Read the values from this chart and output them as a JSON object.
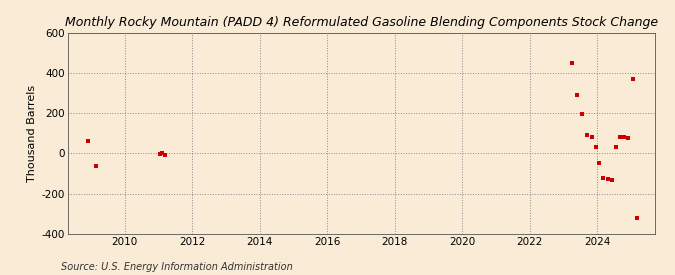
{
  "title": "Monthly Rocky Mountain (PADD 4) Reformulated Gasoline Blending Components Stock Change",
  "ylabel": "Thousand Barrels",
  "source": "Source: U.S. Energy Information Administration",
  "background_color": "#faebd7",
  "plot_bg_color": "#faebd7",
  "marker_color": "#cc0000",
  "xlim": [
    2008.3,
    2025.7
  ],
  "ylim": [
    -400,
    600
  ],
  "yticks": [
    -400,
    -200,
    0,
    200,
    400,
    600
  ],
  "xticks": [
    2010,
    2012,
    2014,
    2016,
    2018,
    2020,
    2022,
    2024
  ],
  "data_x": [
    2008.9,
    2009.15,
    2011.05,
    2011.1,
    2011.2,
    2023.25,
    2023.4,
    2023.55,
    2023.7,
    2023.83,
    2023.97,
    2024.05,
    2024.17,
    2024.3,
    2024.42,
    2024.55,
    2024.67,
    2024.8,
    2024.92,
    2025.05,
    2025.17
  ],
  "data_y": [
    60,
    -65,
    -5,
    3,
    -8,
    450,
    290,
    195,
    90,
    80,
    30,
    -50,
    -120,
    -125,
    -130,
    30,
    80,
    80,
    75,
    370,
    -320
  ]
}
